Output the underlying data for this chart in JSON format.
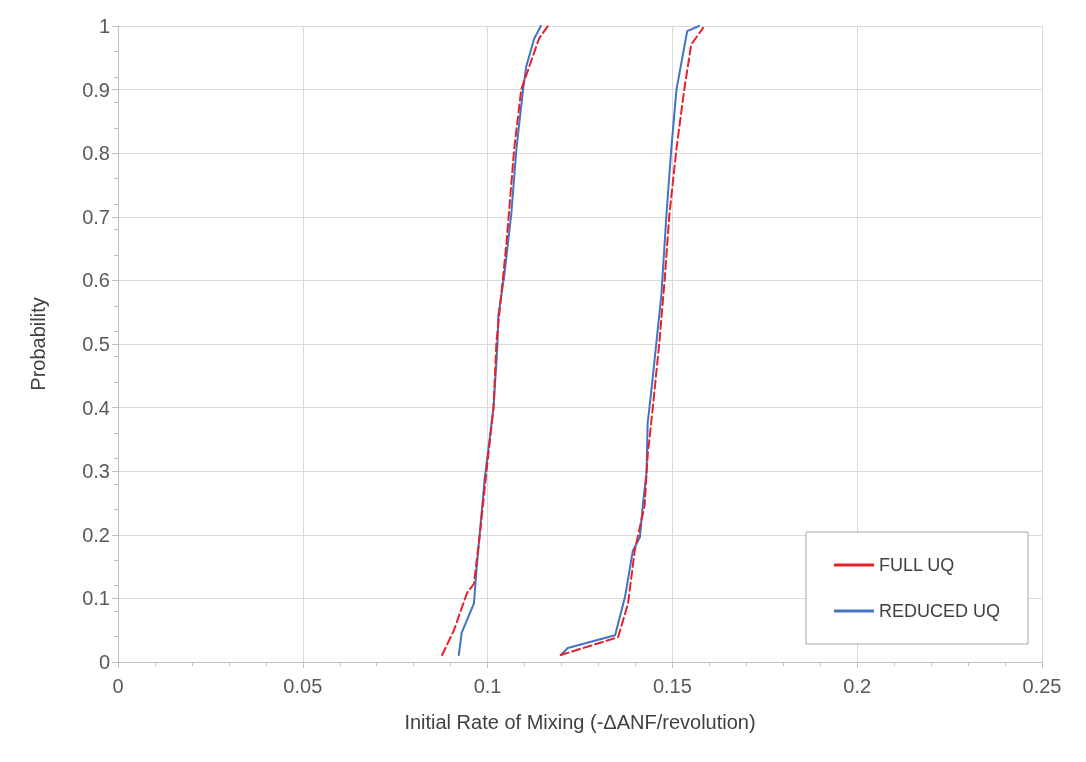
{
  "chart_data": {
    "type": "line",
    "xlabel": "Initial Rate of Mixing (-ΔANF/revolution)",
    "ylabel": "Probability",
    "xlim": [
      0,
      0.25
    ],
    "xticks": [
      0,
      0.05,
      0.1,
      0.15,
      0.2,
      0.25
    ],
    "ylim": [
      0,
      1
    ],
    "yticks": [
      0,
      0.1,
      0.2,
      0.3,
      0.4,
      0.5,
      0.6,
      0.7,
      0.8,
      0.9,
      1
    ],
    "grid": true,
    "legend": "bottom right",
    "marker": "none",
    "series": [
      {
        "name": "FULL UQ",
        "color": "#e8202a",
        "line_style": "dashed",
        "x": [
          0.0877,
          0.0909,
          0.0944,
          0.0963,
          0.0979,
          0.0997,
          0.1016,
          0.1024,
          0.1051,
          0.1072,
          0.1091,
          0.1112,
          0.1139,
          0.1163,
          null,
          0.1198,
          0.1353,
          0.138,
          0.1398,
          0.1406,
          0.1425,
          0.1433,
          0.1447,
          0.1465,
          0.1479,
          0.1492,
          0.1511,
          0.1532,
          0.1551,
          0.1583
        ],
        "values": [
          0.011,
          0.05,
          0.108,
          0.123,
          0.2,
          0.3,
          0.4,
          0.504,
          0.658,
          0.807,
          0.9,
          0.935,
          0.98,
          1.0,
          null,
          0.011,
          0.039,
          0.092,
          0.175,
          0.196,
          0.247,
          0.324,
          0.4,
          0.504,
          0.601,
          0.704,
          0.807,
          0.9,
          0.971,
          0.997
        ]
      },
      {
        "name": "REDUCED UQ",
        "color": "#4472c4",
        "line_style": "solid",
        "x": [
          0.0922,
          0.093,
          0.0963,
          0.097,
          0.0992,
          0.1016,
          0.1024,
          0.1027,
          0.1029,
          0.1045,
          0.1064,
          0.1078,
          0.1096,
          0.1104,
          0.1126,
          0.1144,
          null,
          0.1198,
          0.1217,
          0.1345,
          0.1372,
          0.1393,
          0.1412,
          0.142,
          0.143,
          0.1433,
          0.1444,
          0.1457,
          0.147,
          0.1484,
          0.1497,
          0.1511,
          0.154,
          0.1572
        ],
        "values": [
          0.011,
          0.046,
          0.092,
          0.145,
          0.288,
          0.4,
          0.473,
          0.504,
          0.545,
          0.607,
          0.704,
          0.807,
          0.9,
          0.935,
          0.98,
          1.0,
          null,
          0.011,
          0.022,
          0.042,
          0.103,
          0.175,
          0.196,
          0.247,
          0.298,
          0.375,
          0.432,
          0.504,
          0.576,
          0.704,
          0.807,
          0.9,
          0.992,
          1.0
        ]
      }
    ]
  }
}
